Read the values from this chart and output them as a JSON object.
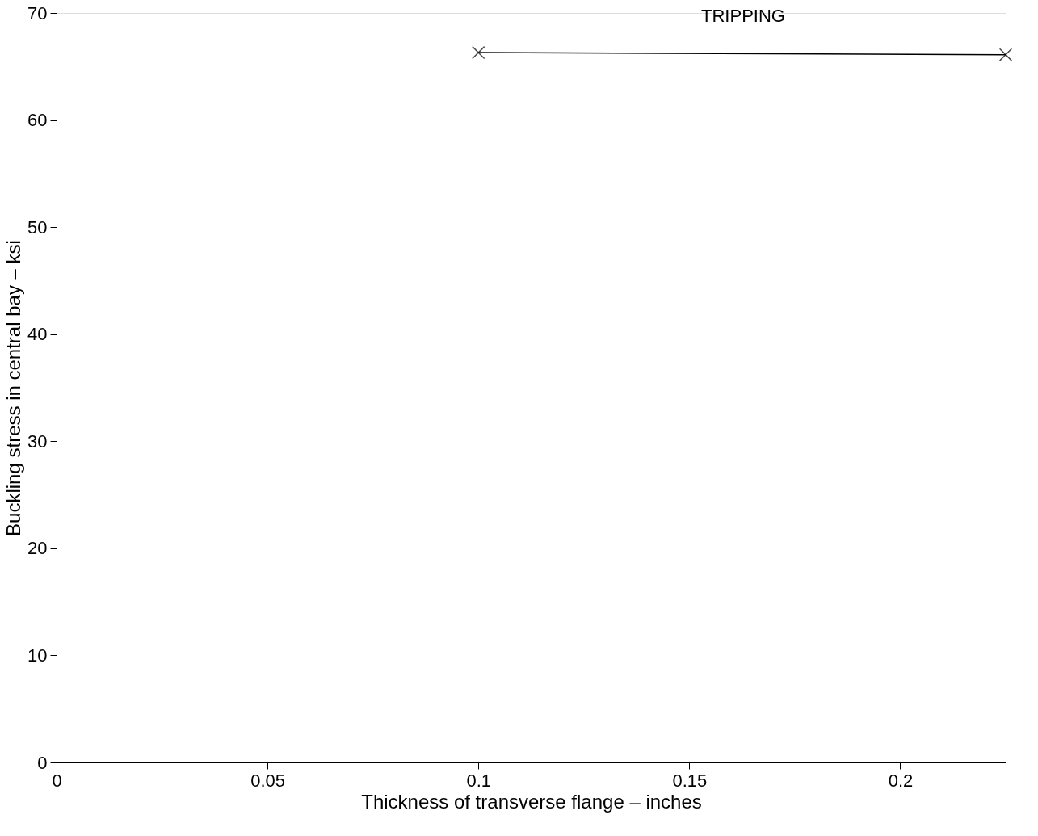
{
  "chart_data": {
    "type": "line",
    "xlabel": "Thickness of transverse flange – inches",
    "ylabel": "Buckling stress in central bay – ksi",
    "x": [
      0.1,
      0.225
    ],
    "series": [
      {
        "color": "#000000",
        "values": [
          66.3,
          66.1
        ]
      }
    ],
    "xlim": [
      0,
      0.225
    ],
    "xticks": [
      0,
      0.05,
      0.1,
      0.15,
      0.2
    ],
    "ylim": [
      0,
      70
    ],
    "yticks": [
      0,
      10,
      20,
      30,
      40,
      50,
      60,
      70
    ],
    "grid": false,
    "marker": "cross",
    "line_style": "solid",
    "annotations": [
      "TRIPPING"
    ]
  }
}
